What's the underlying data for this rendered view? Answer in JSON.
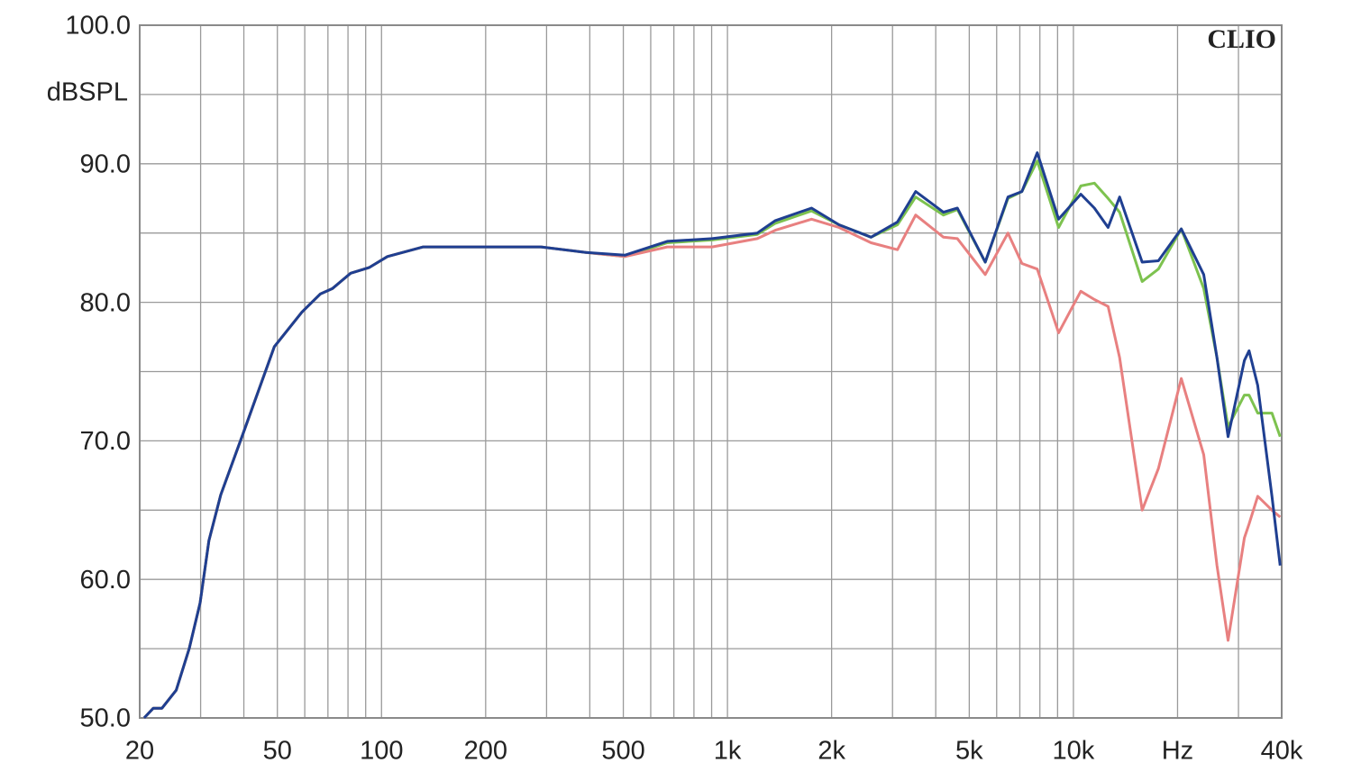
{
  "chart_data": {
    "type": "line",
    "y_label": "dBSPL",
    "watermark": "CLIO",
    "x": [
      20.6,
      21.9,
      23.2,
      25.5,
      27.8,
      29.9,
      31.7,
      34.3,
      39.9,
      49,
      58.9,
      66.5,
      72.2,
      81.4,
      92,
      104,
      132,
      202,
      289,
      390,
      505,
      670,
      903,
      1220,
      1375,
      1750,
      2100,
      2600,
      3100,
      3500,
      4210,
      4620,
      5560,
      6470,
      7100,
      7860,
      9060,
      10500,
      11500,
      12600,
      13600,
      15800,
      17600,
      20500,
      23800,
      26000,
      28000,
      31200,
      32200,
      34100,
      37500,
      39600
    ],
    "series": [
      {
        "color": "#7dc24f",
        "values": [
          50.0,
          50.7,
          50.7,
          52,
          55,
          58.3,
          62.8,
          66.1,
          70.6,
          76.8,
          79.3,
          80.6,
          81,
          82.1,
          82.5,
          83.3,
          84,
          84,
          84,
          83.6,
          83.3,
          84.3,
          84.5,
          84.9,
          85.7,
          86.6,
          85.6,
          84.7,
          85.6,
          87.6,
          86.3,
          86.7,
          82.9,
          87.5,
          88,
          90.2,
          85.4,
          88.4,
          88.6,
          87.5,
          86.5,
          81.5,
          82.4,
          85.3,
          81,
          76,
          71,
          73.3,
          73.3,
          72,
          72,
          70.3
        ]
      },
      {
        "color": "#e88080",
        "values": [
          50.0,
          50.7,
          50.7,
          52,
          55,
          58.3,
          62.8,
          66.1,
          70.6,
          76.8,
          79.3,
          80.6,
          81,
          82.1,
          82.5,
          83.3,
          84,
          84,
          84,
          83.6,
          83.3,
          84,
          84,
          84.6,
          85.2,
          86,
          85.4,
          84.3,
          83.8,
          86.3,
          84.7,
          84.6,
          82,
          85,
          82.8,
          82.4,
          77.8,
          80.8,
          80.2,
          79.7,
          76,
          65,
          68,
          74.5,
          69,
          61,
          55.6,
          63,
          64,
          66,
          65,
          64.5
        ]
      },
      {
        "color": "#1f3f91",
        "values": [
          50.0,
          50.7,
          50.7,
          52,
          55,
          58.3,
          62.8,
          66.1,
          70.6,
          76.8,
          79.3,
          80.6,
          81,
          82.1,
          82.5,
          83.3,
          84,
          84,
          84,
          83.6,
          83.4,
          84.4,
          84.6,
          85,
          85.9,
          86.8,
          85.6,
          84.7,
          85.8,
          88,
          86.5,
          86.8,
          82.9,
          87.6,
          88,
          90.8,
          86,
          87.8,
          86.8,
          85.4,
          87.6,
          82.9,
          83,
          85.3,
          82,
          76,
          70.3,
          75.8,
          76.5,
          74,
          66,
          61
        ]
      }
    ],
    "xscale": "log",
    "xlim": [
      20,
      40000
    ],
    "xticks": [
      20,
      50,
      100,
      200,
      500,
      {
        "value": 1000,
        "label": "1k"
      },
      {
        "value": 2000,
        "label": "2k"
      },
      {
        "value": 5000,
        "label": "5k"
      },
      {
        "value": 10000,
        "label": "10k"
      },
      {
        "value": 20000,
        "label": "Hz"
      },
      {
        "value": 40000,
        "label": "40k"
      }
    ],
    "minor_xticks": [
      30,
      40,
      60,
      70,
      80,
      90,
      300,
      400,
      600,
      700,
      800,
      900,
      3000,
      4000,
      6000,
      7000,
      8000,
      9000,
      30000
    ],
    "ylim": [
      50,
      100
    ],
    "yticks": [
      {
        "value": 50,
        "label": "50.0"
      },
      {
        "value": 60,
        "label": "60.0"
      },
      {
        "value": 70,
        "label": "70.0"
      },
      {
        "value": 80,
        "label": "80.0"
      },
      {
        "value": 90,
        "label": "90.0"
      },
      {
        "value": 100,
        "label": "100.0"
      }
    ],
    "minor_yticks": [
      55,
      65,
      75,
      85,
      95
    ],
    "grid": true
  }
}
